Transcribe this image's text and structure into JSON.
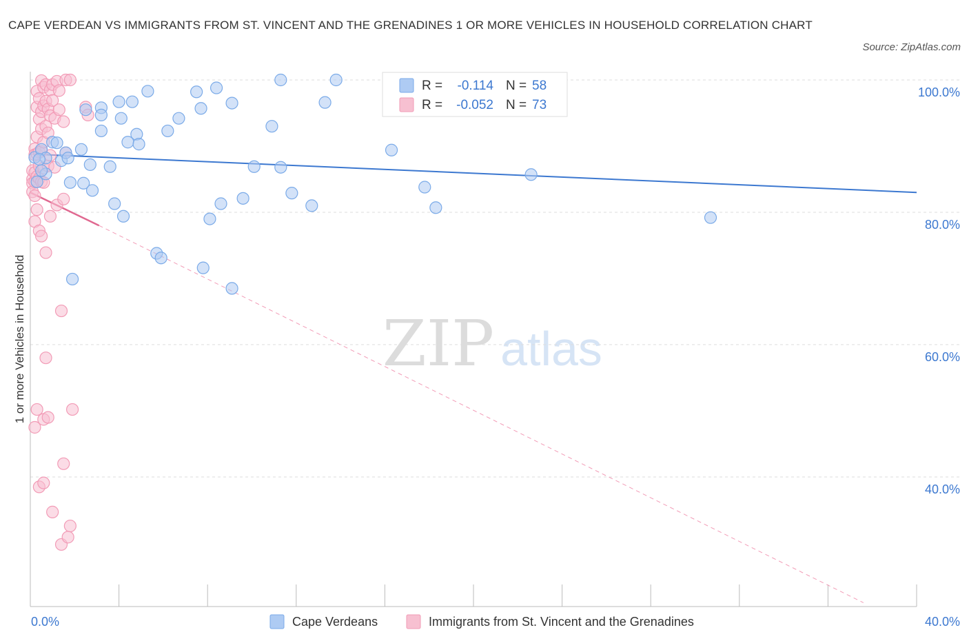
{
  "title": "CAPE VERDEAN VS IMMIGRANTS FROM ST. VINCENT AND THE GRENADINES 1 OR MORE VEHICLES IN HOUSEHOLD CORRELATION CHART",
  "source": "Source: ZipAtlas.com",
  "watermark": {
    "zip": "ZIP",
    "atlas": "atlas"
  },
  "chart_data": {
    "type": "scatter",
    "title": "CAPE VERDEAN VS IMMIGRANTS FROM ST. VINCENT AND THE GRENADINES 1 OR MORE VEHICLES IN HOUSEHOLD CORRELATION CHART",
    "xlabel": "",
    "ylabel": "1 or more Vehicles in Household",
    "xlim": [
      0,
      40
    ],
    "ylim": [
      21,
      102
    ],
    "x_tick_labels": {
      "left": "0.0%",
      "right": "40.0%"
    },
    "x_ticks_minor": [
      0,
      4,
      8,
      12,
      16,
      20,
      24,
      28,
      32,
      36,
      40
    ],
    "y_ticks": [
      100,
      80,
      60,
      40
    ],
    "y_tick_labels": [
      "100.0%",
      "80.0%",
      "60.0%",
      "40.0%"
    ],
    "grid": true,
    "legend_stats": [
      {
        "r_label": "R =",
        "r_value": "-0.114",
        "n_label": "N =",
        "n_value": "58"
      },
      {
        "r_label": "R =",
        "r_value": "-0.052",
        "n_label": "N =",
        "n_value": "73"
      }
    ],
    "series": [
      {
        "name": "Cape Verdeans",
        "color": "#7aaae8",
        "fill": "#aecbf3",
        "line_color": "#3c78d0",
        "trend": {
          "x": [
            0,
            40
          ],
          "y": [
            88.8,
            83.0
          ]
        },
        "points": [
          [
            0.2,
            88.3
          ],
          [
            0.5,
            89.5
          ],
          [
            0.7,
            88.2
          ],
          [
            0.7,
            85.8
          ],
          [
            1.0,
            90.6
          ],
          [
            1.2,
            90.5
          ],
          [
            1.4,
            87.8
          ],
          [
            1.6,
            89.0
          ],
          [
            1.7,
            88.2
          ],
          [
            1.8,
            84.5
          ],
          [
            2.3,
            89.5
          ],
          [
            2.4,
            84.4
          ],
          [
            2.7,
            87.2
          ],
          [
            2.8,
            83.3
          ],
          [
            2.5,
            95.5
          ],
          [
            3.2,
            92.3
          ],
          [
            3.2,
            95.8
          ],
          [
            3.2,
            94.7
          ],
          [
            3.6,
            86.9
          ],
          [
            3.8,
            81.3
          ],
          [
            4.0,
            96.7
          ],
          [
            4.1,
            94.2
          ],
          [
            4.2,
            79.4
          ],
          [
            4.4,
            90.6
          ],
          [
            4.6,
            96.7
          ],
          [
            4.8,
            91.8
          ],
          [
            4.9,
            90.3
          ],
          [
            5.3,
            98.3
          ],
          [
            5.7,
            73.8
          ],
          [
            5.9,
            73.1
          ],
          [
            6.2,
            92.3
          ],
          [
            6.7,
            94.2
          ],
          [
            7.5,
            98.2
          ],
          [
            7.7,
            95.7
          ],
          [
            7.8,
            71.6
          ],
          [
            8.1,
            79.0
          ],
          [
            8.4,
            98.8
          ],
          [
            8.6,
            81.3
          ],
          [
            9.1,
            68.5
          ],
          [
            9.1,
            96.5
          ],
          [
            9.6,
            82.1
          ],
          [
            10.1,
            86.9
          ],
          [
            10.9,
            93.0
          ],
          [
            11.3,
            86.8
          ],
          [
            11.3,
            100.0
          ],
          [
            11.8,
            82.9
          ],
          [
            12.7,
            81.0
          ],
          [
            13.3,
            96.6
          ],
          [
            13.8,
            100.0
          ],
          [
            16.3,
            89.4
          ],
          [
            17.8,
            83.8
          ],
          [
            18.3,
            80.7
          ],
          [
            22.6,
            85.7
          ],
          [
            30.7,
            79.2
          ],
          [
            1.9,
            69.9
          ],
          [
            0.3,
            84.6
          ],
          [
            0.5,
            86.3
          ],
          [
            0.4,
            88.0
          ]
        ]
      },
      {
        "name": "Immigrants from St. Vincent and the Grenadines",
        "color": "#f29bb6",
        "fill": "#f7c0d1",
        "line_color": "#e06890",
        "trend": {
          "x": [
            0,
            3.1
          ],
          "y": [
            83.0,
            78.0
          ]
        },
        "trend_ext": {
          "x": [
            3.1,
            37.6
          ],
          "y": [
            78.0,
            21.0
          ]
        },
        "points": [
          [
            0.1,
            86.3
          ],
          [
            0.1,
            85.0
          ],
          [
            0.1,
            84.4
          ],
          [
            0.1,
            83.1
          ],
          [
            0.2,
            89.6
          ],
          [
            0.2,
            88.7
          ],
          [
            0.2,
            86.0
          ],
          [
            0.2,
            84.6
          ],
          [
            0.2,
            82.5
          ],
          [
            0.2,
            78.6
          ],
          [
            0.2,
            47.5
          ],
          [
            0.3,
            98.3
          ],
          [
            0.3,
            95.9
          ],
          [
            0.3,
            91.4
          ],
          [
            0.3,
            88.8
          ],
          [
            0.3,
            85.4
          ],
          [
            0.3,
            80.4
          ],
          [
            0.3,
            50.2
          ],
          [
            0.4,
            97.2
          ],
          [
            0.4,
            94.1
          ],
          [
            0.4,
            89.1
          ],
          [
            0.4,
            87.0
          ],
          [
            0.4,
            85.1
          ],
          [
            0.4,
            77.2
          ],
          [
            0.4,
            38.5
          ],
          [
            0.5,
            99.9
          ],
          [
            0.5,
            95.2
          ],
          [
            0.5,
            92.6
          ],
          [
            0.5,
            89.2
          ],
          [
            0.5,
            84.6
          ],
          [
            0.5,
            76.4
          ],
          [
            0.6,
            98.9
          ],
          [
            0.6,
            96.1
          ],
          [
            0.6,
            90.6
          ],
          [
            0.6,
            86.7
          ],
          [
            0.6,
            84.5
          ],
          [
            0.6,
            48.7
          ],
          [
            0.6,
            39.1
          ],
          [
            0.7,
            99.3
          ],
          [
            0.7,
            96.8
          ],
          [
            0.7,
            93.0
          ],
          [
            0.7,
            73.9
          ],
          [
            0.7,
            58.0
          ],
          [
            0.8,
            95.6
          ],
          [
            0.8,
            92.0
          ],
          [
            0.8,
            87.0
          ],
          [
            0.8,
            49.0
          ],
          [
            0.9,
            98.5
          ],
          [
            0.9,
            94.6
          ],
          [
            0.9,
            88.6
          ],
          [
            0.9,
            79.4
          ],
          [
            1.0,
            99.3
          ],
          [
            1.0,
            96.9
          ],
          [
            1.0,
            34.7
          ],
          [
            1.1,
            94.2
          ],
          [
            1.1,
            86.8
          ],
          [
            1.2,
            99.8
          ],
          [
            1.2,
            81.1
          ],
          [
            1.3,
            98.4
          ],
          [
            1.3,
            95.5
          ],
          [
            1.4,
            65.1
          ],
          [
            1.4,
            29.8
          ],
          [
            1.5,
            93.7
          ],
          [
            1.5,
            82.0
          ],
          [
            1.5,
            42.0
          ],
          [
            1.6,
            100.0
          ],
          [
            1.6,
            89.0
          ],
          [
            1.7,
            30.9
          ],
          [
            1.8,
            100.0
          ],
          [
            1.8,
            32.6
          ],
          [
            1.9,
            50.2
          ],
          [
            2.5,
            95.9
          ],
          [
            2.6,
            94.7
          ]
        ]
      }
    ]
  }
}
